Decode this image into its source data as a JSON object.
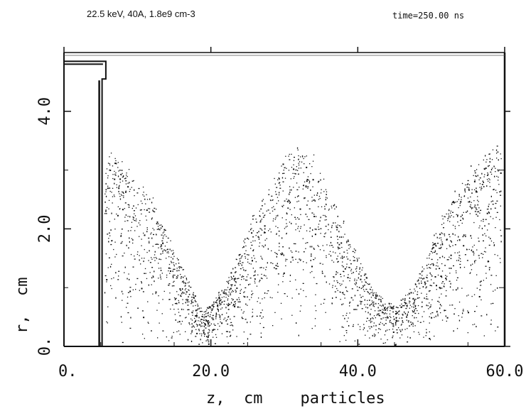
{
  "chart_data": {
    "type": "scatter",
    "title": "22.5 keV, 40A,  1.8e9 cm-3",
    "time_label": "time=250.00 ns",
    "xlabel": "z,  cm    particles",
    "ylabel": "r,  cm",
    "xlim": [
      0,
      60
    ],
    "ylim": [
      0,
      5
    ],
    "x_ticks": [
      "0.",
      "20.0",
      "40.0",
      "60.0"
    ],
    "y_ticks": [
      "0.",
      "2.0",
      "4.0"
    ],
    "grid": false,
    "description": "beam particles oscillating in radius along z; envelope minima near z=19 cm and z=45 cm, maximum near z=32 cm",
    "envelope": {
      "z": [
        5.5,
        8,
        12,
        16,
        19,
        22,
        26,
        30,
        32,
        34,
        38,
        42,
        45,
        48,
        52,
        56,
        59.5
      ],
      "r_max": [
        3.5,
        3.2,
        2.6,
        1.4,
        0.6,
        1.1,
        2.4,
        3.3,
        3.5,
        3.3,
        2.2,
        1.0,
        0.7,
        1.2,
        2.4,
        3.3,
        3.6
      ]
    },
    "electrode": {
      "outer_z": [
        0,
        10
      ],
      "inner_z": [
        4.8,
        5.7
      ],
      "top_r": 4.85,
      "step_r": 4.55
    },
    "wall_r": 5.0,
    "colors": {
      "ink": "#111111",
      "background": "#ffffff"
    }
  }
}
